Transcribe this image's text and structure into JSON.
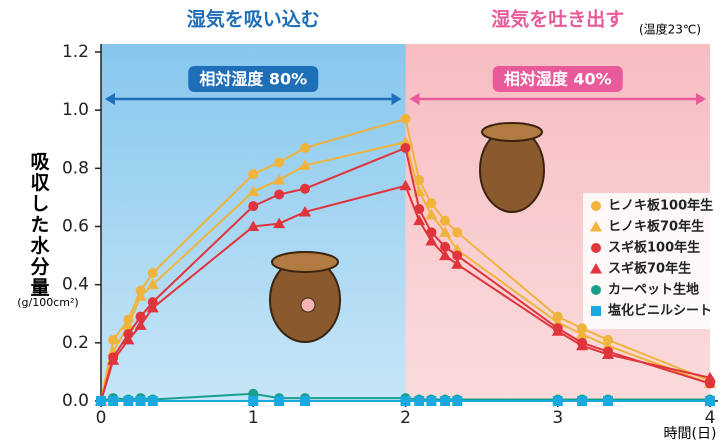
{
  "chart_data": {
    "type": "line",
    "y_label": "吸収した水分量",
    "y_unit": "(g/100cm²)",
    "x_label": "時間(日)",
    "note": "(温度23℃)",
    "regions": [
      {
        "title": "湿気を吸い込む",
        "humidity": "相対湿度 80%",
        "from": 0,
        "to": 2,
        "color": "#1f6fb8",
        "fill": "#9fd2f0"
      },
      {
        "title": "湿気を吐き出す",
        "humidity": "相対湿度 40%",
        "from": 2,
        "to": 4,
        "color": "#e85a9a",
        "fill": "#f8c8cc"
      }
    ],
    "xlim": [
      0,
      4
    ],
    "xticks": [
      0,
      1,
      2,
      3,
      4
    ],
    "ylim": [
      0,
      1.2
    ],
    "yticks": [
      {
        "value": 0,
        "label": "0.0"
      },
      0.2,
      0.4,
      0.6,
      0.8,
      {
        "value": 1,
        "label": "1.0"
      },
      1.2
    ],
    "x": [
      0,
      0.08,
      0.18,
      0.26,
      0.34,
      1,
      1.17,
      1.34,
      2,
      2.09,
      2.17,
      2.26,
      2.34,
      3,
      3.16,
      3.33,
      4
    ],
    "series": [
      {
        "name": "ヒノキ板100年生",
        "color": "#f0b43c",
        "marker": "circle",
        "values": [
          0,
          0.21,
          0.28,
          0.38,
          0.44,
          0.78,
          0.82,
          0.87,
          0.97,
          0.76,
          0.68,
          0.62,
          0.58,
          0.29,
          0.25,
          0.21,
          0.07
        ]
      },
      {
        "name": "ヒノキ板70年生",
        "color": "#f0b43c",
        "marker": "triangle",
        "values": [
          0,
          0.17,
          0.26,
          0.36,
          0.4,
          0.72,
          0.76,
          0.81,
          0.89,
          0.72,
          0.64,
          0.58,
          0.52,
          0.27,
          0.23,
          0.19,
          0.06
        ]
      },
      {
        "name": "スギ板100年生",
        "color": "#e0343c",
        "marker": "circle",
        "values": [
          0,
          0.15,
          0.23,
          0.29,
          0.34,
          0.67,
          0.71,
          0.73,
          0.87,
          0.66,
          0.58,
          0.53,
          0.5,
          0.25,
          0.2,
          0.17,
          0.06
        ]
      },
      {
        "name": "スギ板70年生",
        "color": "#e0343c",
        "marker": "triangle",
        "values": [
          0,
          0.14,
          0.21,
          0.26,
          0.32,
          0.6,
          0.61,
          0.65,
          0.74,
          0.62,
          0.55,
          0.5,
          0.47,
          0.24,
          0.19,
          0.16,
          0.08
        ]
      },
      {
        "name": "カーペット生地",
        "color": "#18a08a",
        "marker": "circle",
        "values": [
          0,
          0.01,
          0.005,
          0.01,
          0.005,
          0.025,
          0.01,
          0.01,
          0.01,
          0.005,
          0.005,
          0.005,
          0.005,
          0.005,
          0.005,
          0.005,
          0.005
        ]
      },
      {
        "name": "塩化ビニルシート",
        "color": "#1aa8e0",
        "marker": "square",
        "values": [
          0,
          0,
          0,
          0,
          0,
          0,
          0,
          0,
          0,
          0,
          0,
          0,
          0,
          0,
          0,
          0,
          0
        ]
      }
    ]
  }
}
